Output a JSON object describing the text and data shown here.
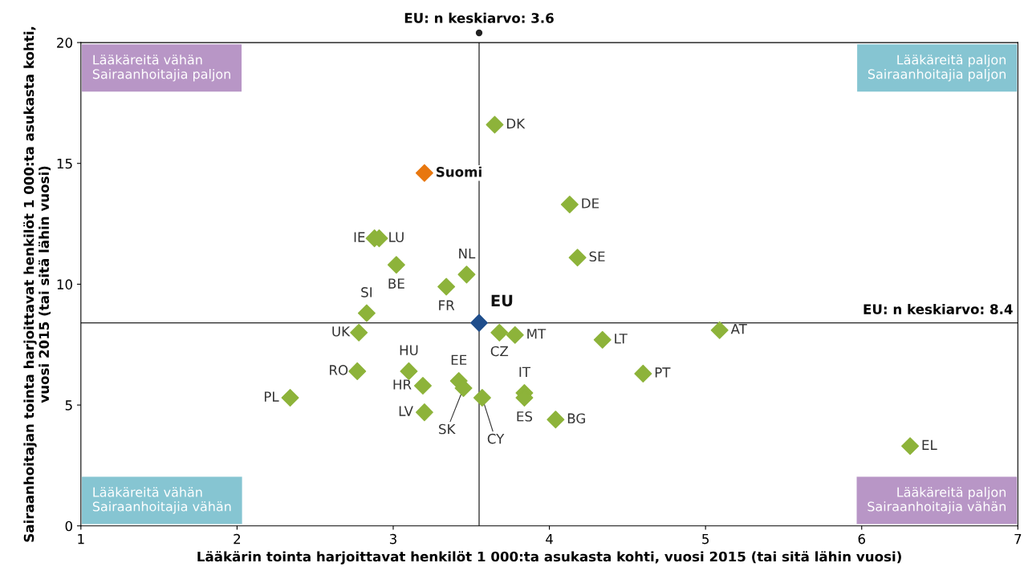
{
  "chart_data": {
    "type": "scatter",
    "xlabel": "Lääkärin tointa harjoittavat henkilöt 1 000:ta asukasta kohti, vuosi 2015 (tai sitä lähin vuosi)",
    "ylabel": "Sairaanhoitajan tointa harjoittavat henkilöt 1 000:ta asukasta kohti,\nvuosi 2015 (tai sitä lähin vuosi)",
    "xlim": [
      1,
      7
    ],
    "ylim": [
      0,
      20
    ],
    "xticks": [
      1,
      2,
      3,
      4,
      5,
      6,
      7
    ],
    "yticks": [
      0,
      5,
      10,
      15,
      20
    ],
    "grid": false,
    "marker": "diamond",
    "series": [
      {
        "color": "#8db33a",
        "x": [
          3.65,
          4.13,
          2.88,
          2.91,
          3.02,
          4.18,
          3.47,
          3.34,
          2.83,
          2.78,
          3.68,
          3.78,
          5.09,
          4.34,
          2.77,
          3.1,
          3.42,
          3.45,
          3.19,
          4.6,
          3.84,
          3.84,
          3.57,
          2.34,
          3.2,
          4.04,
          6.31
        ],
        "values": [
          16.6,
          13.3,
          11.9,
          11.9,
          10.8,
          11.1,
          10.4,
          9.9,
          8.8,
          8.0,
          8.0,
          7.9,
          8.1,
          7.7,
          6.4,
          6.4,
          6.0,
          5.7,
          5.8,
          6.3,
          5.5,
          5.3,
          5.3,
          5.3,
          4.7,
          4.4,
          3.3
        ],
        "value_labels": [
          "DK",
          "DE",
          "IE",
          "LU",
          "BE",
          "SE",
          "NL",
          "FR",
          "SI",
          "UK",
          "CZ",
          "MT",
          "AT",
          "LT",
          "RO",
          "HU",
          "EE",
          "SK",
          "HR",
          "PT",
          "IT",
          "ES",
          "CY",
          "PL",
          "LV",
          "BG",
          "EL"
        ]
      },
      {
        "name": "Suomi",
        "color": "#e8770f",
        "x": [
          3.2
        ],
        "values": [
          14.6
        ]
      },
      {
        "name": "EU",
        "color": "#1f4e8c",
        "x": [
          3.55
        ],
        "values": [
          8.4
        ]
      }
    ],
    "ref_lines": [
      {
        "axis": "x",
        "value": 3.55,
        "label": "EU: n keskiarvo: 3.6",
        "color": "#222222"
      },
      {
        "axis": "y",
        "value": 8.4,
        "label": "EU: n keskiarvo: 8.4",
        "color": "#222222"
      }
    ],
    "annotations": [
      "Lääkäreitä vähän\nSairaanhoitajia paljon",
      "Lääkäreitä paljon\nSairaanhoitajia paljon",
      "Lääkäreitä vähän\nSairaanhoitajia vähän",
      "Lääkäreitä paljon\nSairaanhoitajia vähän"
    ]
  }
}
